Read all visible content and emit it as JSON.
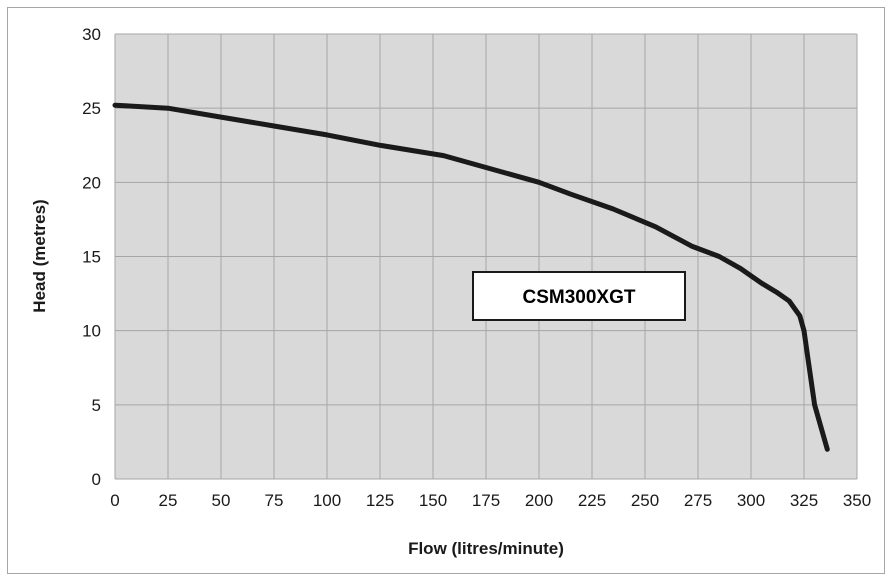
{
  "chart_data": {
    "type": "line",
    "xlabel": "Flow (litres/minute)",
    "ylabel": "Head (metres)",
    "xlim": [
      0,
      350
    ],
    "ylim": [
      0,
      30
    ],
    "x_ticks": [
      "0",
      "25",
      "50",
      "75",
      "100",
      "125",
      "150",
      "175",
      "200",
      "225",
      "250",
      "275",
      "300",
      "325",
      "350"
    ],
    "y_ticks": [
      "0",
      "5",
      "10",
      "15",
      "20",
      "25",
      "30"
    ],
    "grid": true,
    "legend": "none",
    "colors": {
      "plot_background": "#d9d9d9",
      "grid": "#a6a6a6",
      "line": "#1a1a1a"
    },
    "annotation": "CSM300XGT",
    "series": [
      {
        "x": [
          0,
          25,
          50,
          75,
          100,
          125,
          155,
          175,
          200,
          215,
          235,
          255,
          272,
          285,
          295,
          305,
          312,
          318,
          323,
          325,
          327,
          330,
          336
        ],
        "y": [
          25.2,
          25.0,
          24.4,
          23.8,
          23.2,
          22.5,
          21.8,
          21.0,
          20.0,
          19.2,
          18.2,
          17.0,
          15.7,
          15.0,
          14.2,
          13.2,
          12.6,
          12.0,
          11.0,
          10.0,
          8.0,
          5.0,
          2.0
        ]
      }
    ]
  }
}
